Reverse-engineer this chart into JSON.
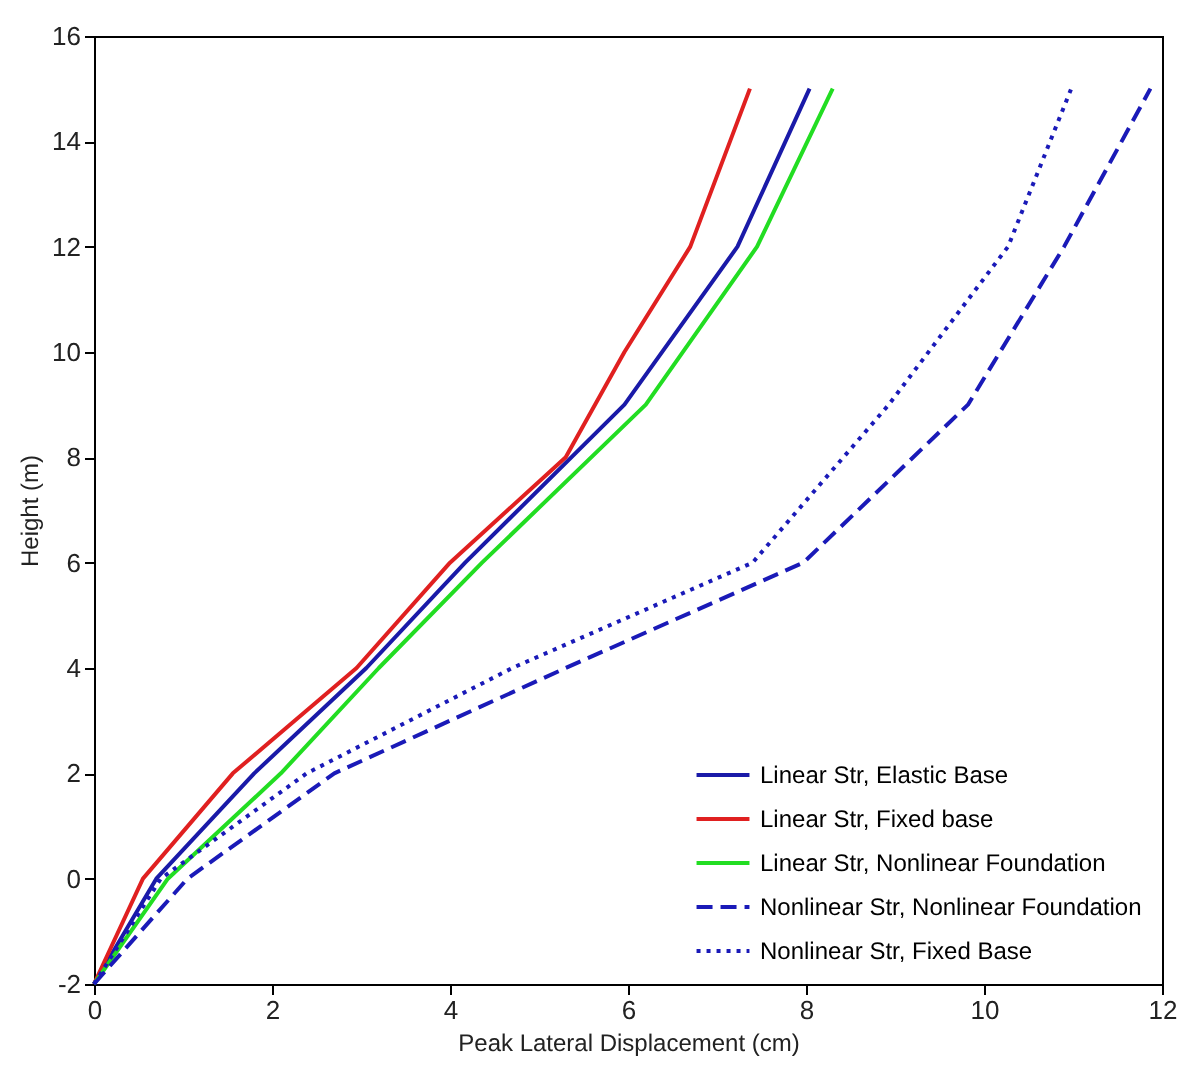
{
  "chart_data": {
    "type": "line",
    "xlabel": "Peak Lateral Displacement (cm)",
    "ylabel": "Height (m)",
    "xlim": [
      0,
      12
    ],
    "xticks": [
      0,
      2,
      4,
      6,
      8,
      10,
      12
    ],
    "ylim": [
      -2,
      16
    ],
    "yticks": [
      -2,
      0,
      2,
      4,
      6,
      8,
      10,
      12,
      14,
      16
    ],
    "grid": false,
    "legend": "bottom right",
    "marker": "none",
    "series": [
      {
        "name": "Linear Str, Elastic Base",
        "color": "#1a1aa8",
        "line_style": "solid",
        "x": [
          0,
          0.7,
          1.8,
          3.06,
          4.17,
          5.96,
          7.23,
          8.04
        ],
        "values": [
          -2,
          0,
          2,
          4,
          6,
          9,
          12,
          15
        ]
      },
      {
        "name": "Linear Str, Fixed base",
        "color": "#e02020",
        "line_style": "solid",
        "x": [
          0,
          0.55,
          1.56,
          2.95,
          4.0,
          5.3,
          5.96,
          6.7,
          7.37
        ],
        "values": [
          -2,
          0,
          2,
          4,
          6,
          8,
          10,
          12,
          15
        ]
      },
      {
        "name": "Linear Str, Nonlinear Foundation",
        "color": "#22dd22",
        "line_style": "solid",
        "x": [
          0,
          0.83,
          2.1,
          3.2,
          4.36,
          6.2,
          7.45,
          8.3
        ],
        "values": [
          -2,
          0,
          2,
          4,
          6,
          9,
          12,
          15
        ]
      },
      {
        "name": "Nonlinear Str, Nonlinear Foundation",
        "color": "#1a1ab8",
        "line_style": "dashed",
        "x": [
          0,
          1.05,
          2.7,
          5.3,
          7.97,
          9.82,
          10.9,
          11.87
        ],
        "values": [
          -2,
          0,
          2,
          4,
          6,
          9,
          12,
          15
        ]
      },
      {
        "name": "Nonlinear Str, Fixed Base",
        "color": "#1a1ab8",
        "line_style": "dotted",
        "x": [
          0,
          0.75,
          2.39,
          4.7,
          7.4,
          8.93,
          10.27,
          10.98
        ],
        "values": [
          -2,
          0,
          2,
          4,
          6,
          9,
          12,
          15
        ]
      }
    ]
  }
}
